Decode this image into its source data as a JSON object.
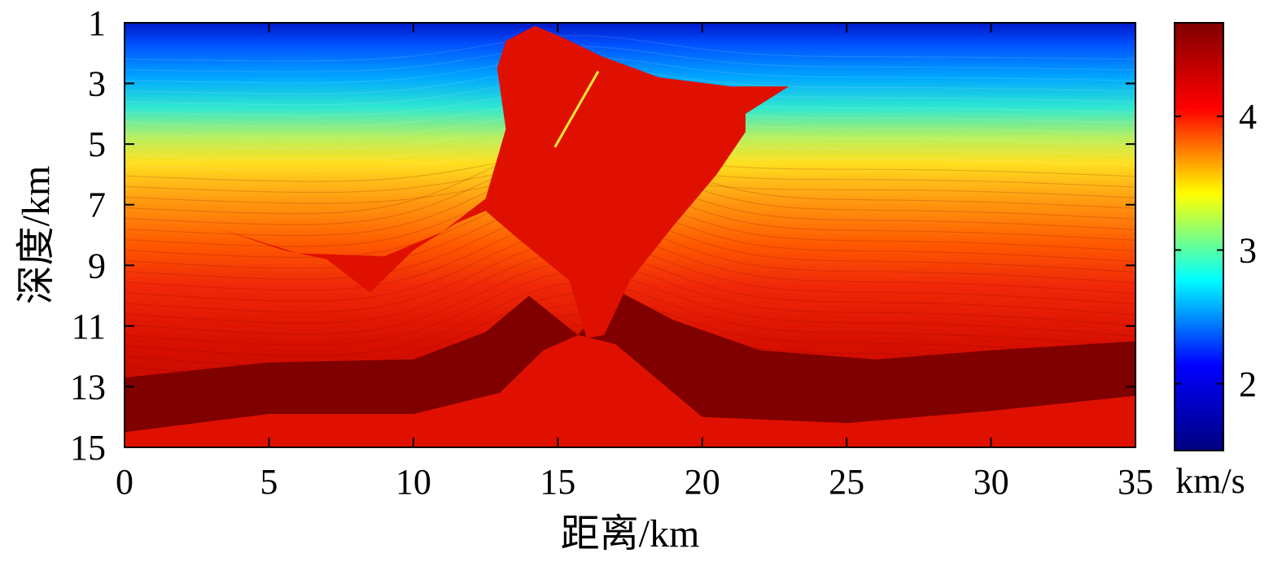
{
  "chart_data": {
    "type": "heatmap",
    "title": "",
    "xlabel": "距离/km",
    "ylabel": "深度/km",
    "xlim": [
      0,
      35
    ],
    "ylim": [
      15,
      1
    ],
    "x_ticks": [
      0,
      5,
      10,
      15,
      20,
      25,
      30,
      35
    ],
    "y_ticks": [
      1,
      3,
      5,
      7,
      9,
      11,
      13,
      15
    ],
    "colorbar": {
      "label": "km/s",
      "range": [
        1.5,
        4.7
      ],
      "ticks": [
        2,
        3,
        4
      ],
      "colormap": "jet",
      "colors": [
        "#000080",
        "#0000ff",
        "#00ffff",
        "#ffff00",
        "#ff0000",
        "#800000"
      ]
    },
    "features": {
      "salt_body": {
        "velocity_kms": 4.5,
        "color": "#e01000",
        "outline_km": [
          [
            13.2,
            1.6
          ],
          [
            14.2,
            1.1
          ],
          [
            15.2,
            1.5
          ],
          [
            16.5,
            2.1
          ],
          [
            18.5,
            2.8
          ],
          [
            21.0,
            3.1
          ],
          [
            23.0,
            3.1
          ],
          [
            21.5,
            4.0
          ],
          [
            21.5,
            4.6
          ],
          [
            20.5,
            6.0
          ],
          [
            19.0,
            7.7
          ],
          [
            17.5,
            9.5
          ],
          [
            16.6,
            11.3
          ],
          [
            16.0,
            11.4
          ],
          [
            15.4,
            9.5
          ],
          [
            13.6,
            8.1
          ],
          [
            12.5,
            7.2
          ],
          [
            11.5,
            7.6
          ],
          [
            10.0,
            8.5
          ],
          [
            8.5,
            9.9
          ],
          [
            7.0,
            8.8
          ],
          [
            5.5,
            8.5
          ],
          [
            3.3,
            7.8
          ],
          [
            6.0,
            8.6
          ],
          [
            9.0,
            8.7
          ],
          [
            11.0,
            7.9
          ],
          [
            12.5,
            6.8
          ],
          [
            13.2,
            4.5
          ],
          [
            12.9,
            2.5
          ]
        ]
      },
      "basement": {
        "velocity_kms": 4.5,
        "color": "#e01000",
        "top_km": [
          [
            0,
            14.5
          ],
          [
            5,
            13.9
          ],
          [
            10,
            13.9
          ],
          [
            13,
            13.2
          ],
          [
            14.5,
            11.8
          ],
          [
            15.7,
            11.3
          ],
          [
            17,
            11.6
          ],
          [
            18.5,
            12.8
          ],
          [
            20,
            14.0
          ],
          [
            25,
            14.2
          ],
          [
            30,
            13.8
          ],
          [
            35,
            13.3
          ]
        ]
      },
      "high_velocity_layer": {
        "velocity_kms": 4.7,
        "color": "#800000",
        "top_km": [
          [
            0,
            12.7
          ],
          [
            5,
            12.2
          ],
          [
            10,
            12.1
          ],
          [
            12.5,
            11.2
          ],
          [
            14.0,
            10.0
          ],
          [
            15.7,
            11.3
          ],
          [
            17.0,
            9.8
          ],
          [
            19.0,
            10.8
          ],
          [
            22.0,
            11.8
          ],
          [
            26.0,
            12.1
          ],
          [
            30.0,
            11.8
          ],
          [
            35,
            11.5
          ]
        ]
      },
      "low_velocity_dike": {
        "velocity_kms": 3.3,
        "color": "#ffeb30",
        "from_km": [
          16.4,
          2.6
        ],
        "to_km": [
          14.9,
          5.1
        ]
      }
    }
  }
}
